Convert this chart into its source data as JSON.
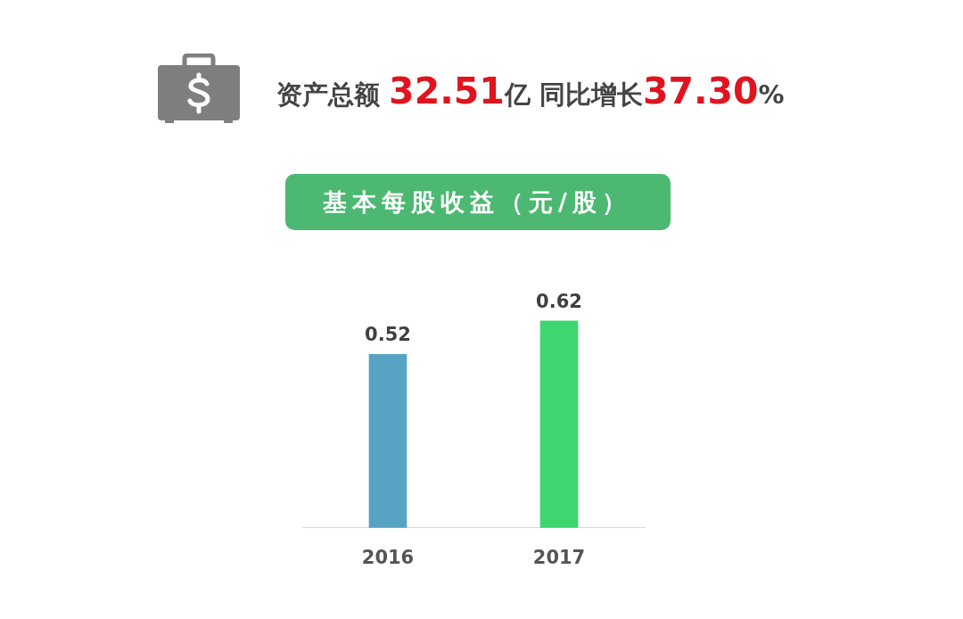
{
  "chart_data": {
    "type": "bar",
    "title": "基本每股收益（元/股）",
    "annotations": [
      "资产总额 32.51亿 同比增长37.30%"
    ],
    "categories": [
      "2016",
      "2017"
    ],
    "values": [
      0.52,
      0.62
    ],
    "colors": [
      "#57a3c4",
      "#3ed66f"
    ],
    "data_labels": true
  }
}
